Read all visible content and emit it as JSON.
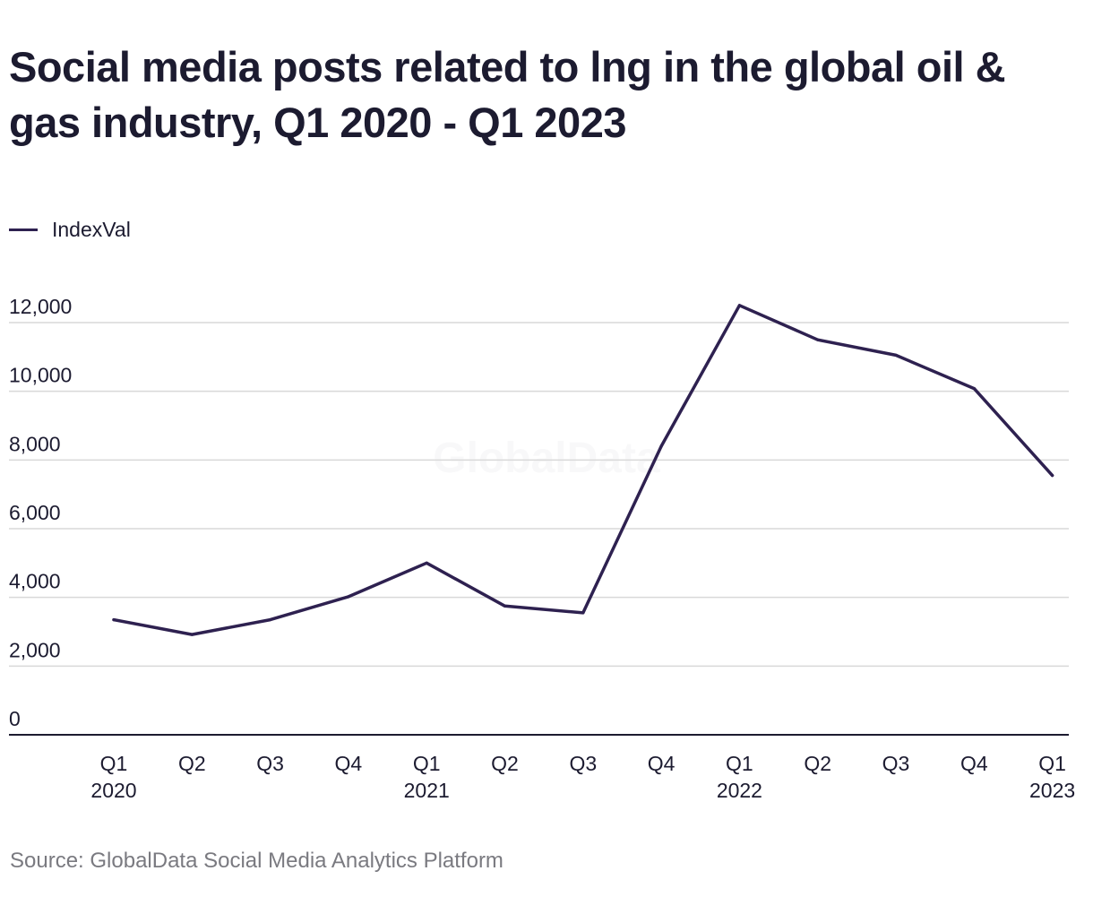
{
  "title": "Social media posts related to lng in the global oil & gas industry, Q1 2020 - Q1 2023",
  "source": "Source: GlobalData Social Media Analytics Platform",
  "watermark": "GlobalData",
  "colors": {
    "line": "#2e2150",
    "grid": "#d9d9d9",
    "axis": "#1c1b30",
    "text": "#1c1b30",
    "source": "#7a7a80"
  },
  "chart_data": {
    "type": "line",
    "title": "Social media posts related to lng in the global oil & gas industry, Q1 2020 - Q1 2023",
    "xlabel": "",
    "ylabel": "",
    "categories": [
      [
        "Q1",
        "2020"
      ],
      [
        "Q2",
        ""
      ],
      [
        "Q3",
        ""
      ],
      [
        "Q4",
        ""
      ],
      [
        "Q1",
        "2021"
      ],
      [
        "Q2",
        ""
      ],
      [
        "Q3",
        ""
      ],
      [
        "Q4",
        ""
      ],
      [
        "Q1",
        "2022"
      ],
      [
        "Q2",
        ""
      ],
      [
        "Q3",
        ""
      ],
      [
        "Q4",
        ""
      ],
      [
        "Q1",
        "2023"
      ]
    ],
    "series": [
      {
        "name": "IndexVal",
        "values": [
          3350,
          2920,
          3350,
          4020,
          5000,
          3750,
          3550,
          8400,
          12500,
          11500,
          11050,
          10080,
          7550
        ]
      }
    ],
    "ylim": [
      0,
      12000
    ],
    "yticks": [
      0,
      2000,
      4000,
      6000,
      8000,
      10000,
      12000
    ],
    "ytick_labels": [
      "0",
      "2,000",
      "4,000",
      "6,000",
      "8,000",
      "10,000",
      "12,000"
    ],
    "grid": true,
    "legend": "top-left"
  }
}
